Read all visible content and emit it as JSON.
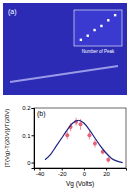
{
  "chart_data": [
    {
      "type": "scatter",
      "title": "(a)",
      "x_label": "Number of Peak",
      "x": [
        1,
        2,
        3,
        4,
        5,
        6
      ],
      "values": [
        1.2,
        2.0,
        3.1,
        3.9,
        5.0,
        6.0
      ],
      "color": "#ffffff",
      "xlim": [
        0,
        7
      ],
      "ylim": [
        0,
        7
      ],
      "tick_labels": false
    },
    {
      "type": "scatter",
      "title": "(b)",
      "x_label": "Vg (Volts)",
      "y_label": "[T(Vg)-T(20V)]/T(20V)",
      "xlim": [
        -45,
        38
      ],
      "ylim": [
        -0.02,
        0.2
      ],
      "xticks": [
        -40,
        -20,
        0,
        20
      ],
      "yticks": [
        0,
        0.1,
        0.2
      ],
      "series": [
        {
          "type": "scatter",
          "color": "#e8607a",
          "x": [
            -15,
            -12,
            -7,
            -3,
            5,
            10,
            17,
            22
          ],
          "values": [
            0.1,
            0.13,
            0.15,
            0.14,
            0.1,
            0.07,
            0.04,
            0.01
          ],
          "errors": [
            0.015,
            0.015,
            0.015,
            0.02,
            0.015,
            0.015,
            0.01,
            0.01
          ]
        },
        {
          "type": "line",
          "color": "#1a237e",
          "x": [
            -35,
            -30,
            -25,
            -20,
            -15,
            -10,
            -5,
            0,
            5,
            10,
            15,
            20,
            25,
            30,
            35
          ],
          "values": [
            0.01,
            0.03,
            0.06,
            0.09,
            0.12,
            0.145,
            0.155,
            0.145,
            0.12,
            0.09,
            0.06,
            0.035,
            0.015,
            0.005,
            0.0
          ]
        }
      ]
    }
  ]
}
